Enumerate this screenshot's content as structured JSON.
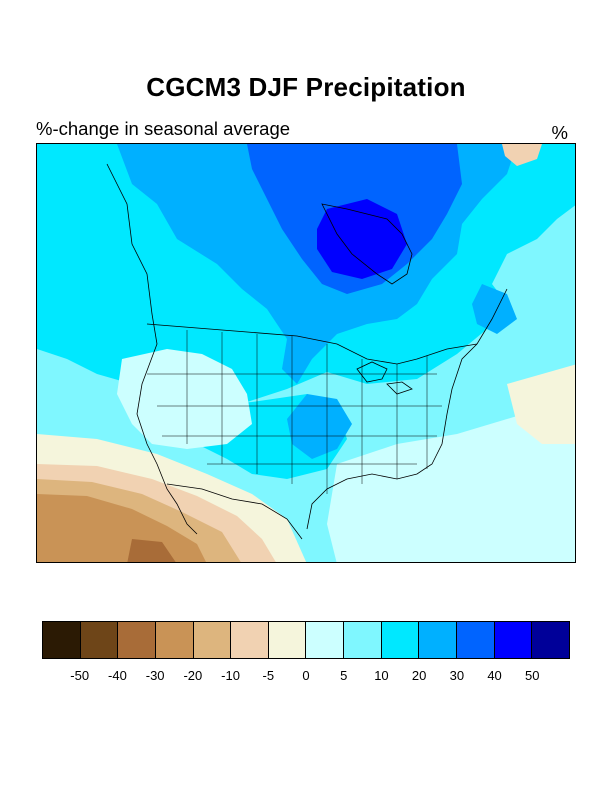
{
  "title": "CGCM3 DJF Precipitation",
  "subtitle": "%-change in seasonal average",
  "units": "%",
  "map": {
    "region": "North America",
    "projection": "Lambert conformal",
    "variable": "precipitation",
    "season": "DJF",
    "model": "CGCM3",
    "background_level_color": "#7FF7FF"
  },
  "colorbar": {
    "colors": [
      "#2B1A04",
      "#6E4518",
      "#A86C38",
      "#C99356",
      "#DDB57E",
      "#F1D2B2",
      "#F5F5DC",
      "#CCFFFF",
      "#7FF7FF",
      "#00E8FF",
      "#00B0FF",
      "#0064FF",
      "#0000FF",
      "#000099"
    ],
    "labels": [
      "-50",
      "-40",
      "-30",
      "-20",
      "-10",
      "-5",
      "0",
      "5",
      "10",
      "20",
      "30",
      "40",
      "50"
    ]
  }
}
